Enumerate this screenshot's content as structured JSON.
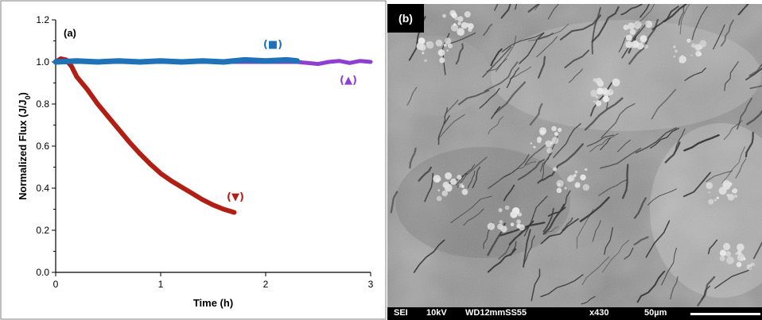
{
  "chart_data": {
    "type": "line",
    "panel_label": "(a)",
    "title": "",
    "xlabel": "Time (h)",
    "ylabel_main": "Normalized Flux (J/J",
    "ylabel_sub": "0",
    "ylabel_close": ")",
    "xlim": [
      0,
      3
    ],
    "ylim": [
      0,
      1.2
    ],
    "xticks": [
      "0",
      "1",
      "2",
      "3"
    ],
    "yticks": [
      "0.0",
      "0.2",
      "0.4",
      "0.6",
      "0.8",
      "1.0",
      "1.2"
    ],
    "grid": false,
    "series": [
      {
        "name": "(▼)",
        "color": "#b01e14",
        "x": [
          0,
          0.05,
          0.1,
          0.15,
          0.2,
          0.3,
          0.4,
          0.5,
          0.6,
          0.7,
          0.8,
          0.9,
          1.0,
          1.1,
          1.2,
          1.3,
          1.4,
          1.5,
          1.6,
          1.7
        ],
        "y": [
          1.0,
          1.015,
          1.01,
          0.98,
          0.93,
          0.87,
          0.8,
          0.74,
          0.68,
          0.62,
          0.565,
          0.515,
          0.47,
          0.435,
          0.405,
          0.375,
          0.345,
          0.32,
          0.3,
          0.285
        ]
      },
      {
        "name": "(■)",
        "color": "#1f72b8",
        "x": [
          0,
          0.2,
          0.4,
          0.6,
          0.8,
          1.0,
          1.2,
          1.4,
          1.6,
          1.8,
          2.0,
          2.2,
          2.3
        ],
        "y": [
          1.0,
          1.005,
          1.0,
          1.005,
          1.0,
          1.005,
          1.0,
          1.005,
          1.0,
          1.01,
          1.005,
          1.01,
          1.005
        ]
      },
      {
        "name": "(▲)",
        "color": "#8e3fd0",
        "x": [
          0,
          0.5,
          1.0,
          1.5,
          2.0,
          2.3,
          2.4,
          2.5,
          2.6,
          2.7,
          2.8,
          2.9,
          3.0
        ],
        "y": [
          1.0,
          1.0,
          1.0,
          1.0,
          1.0,
          1.0,
          0.995,
          0.99,
          1.0,
          1.005,
          0.995,
          1.005,
          1.0
        ]
      }
    ]
  },
  "sem_panel": {
    "label": "(b)",
    "info_bar": {
      "mode": "SEI",
      "voltage": "10kV",
      "working_distance": "WD12mmSS55",
      "magnification": "x430",
      "scale": "50µm"
    }
  }
}
